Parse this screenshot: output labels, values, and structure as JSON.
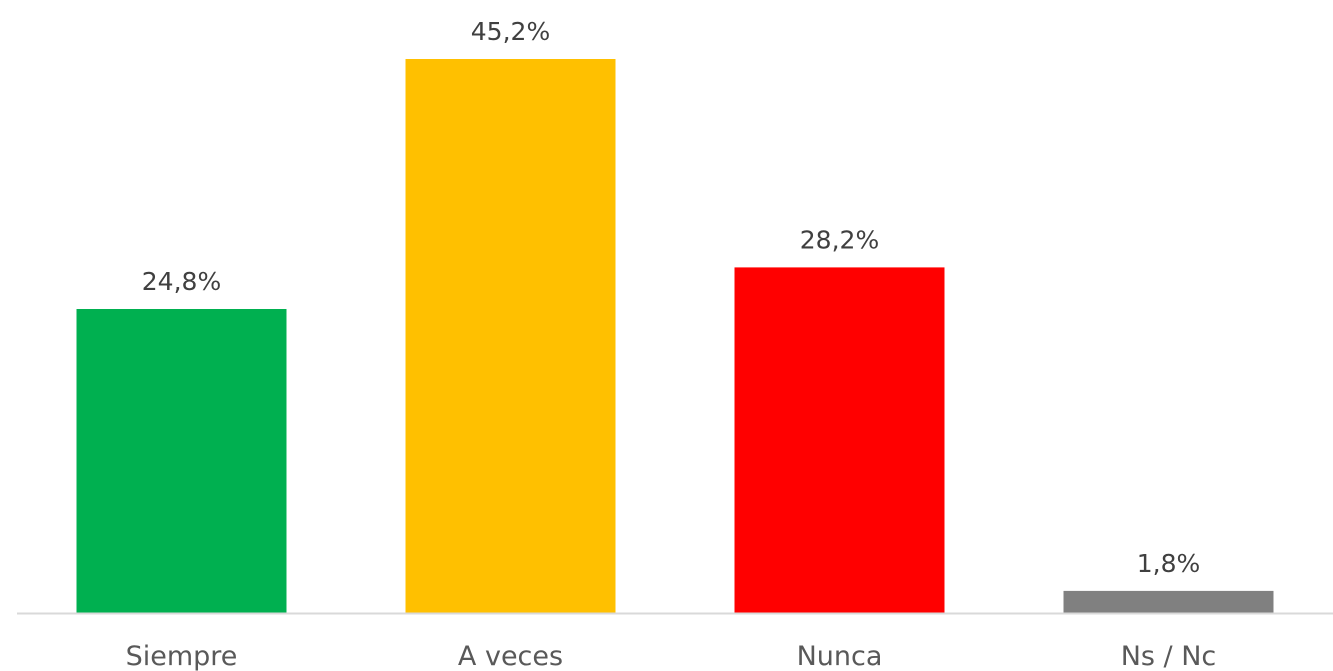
{
  "chart_data": {
    "type": "bar",
    "title": "",
    "xlabel": "",
    "ylabel": "",
    "categories": [
      "Siempre",
      "A veces",
      "Nunca",
      "Ns / Nc"
    ],
    "values": [
      24.8,
      45.2,
      28.2,
      1.8
    ],
    "value_labels": [
      "24,8%",
      "45,2%",
      "28,2%",
      "1,8%"
    ],
    "colors": [
      "#00B050",
      "#FFC000",
      "#FF0000",
      "#808080"
    ],
    "axis_color": "#D9D9D9",
    "ylim": [
      0,
      45.2
    ],
    "grid": false,
    "legend": "none"
  }
}
